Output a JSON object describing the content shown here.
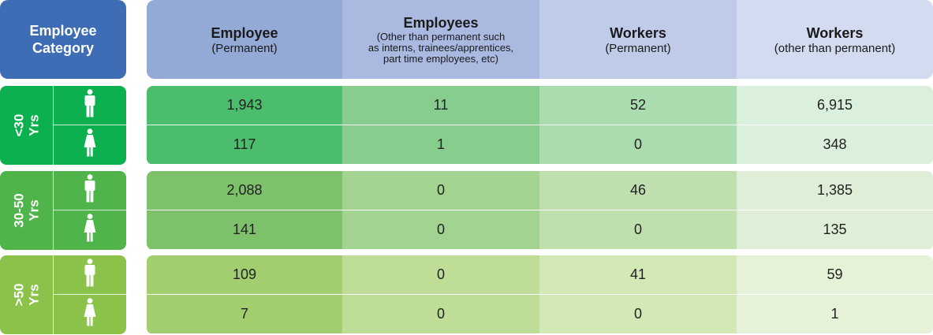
{
  "header": {
    "category": "Employee\nCategory",
    "columns": [
      {
        "title": "Employee",
        "sub": "(Permanent)"
      },
      {
        "title": "Employees",
        "sub": "(Other than permanent such\nas interns, trainees/apprentices,\npart time employees, etc)"
      },
      {
        "title": "Workers",
        "sub": "(Permanent)"
      },
      {
        "title": "Workers",
        "sub": "(other than permanent)"
      }
    ]
  },
  "colors": {
    "category_header": "#3f6db5",
    "header_columns": [
      "#93a9d6",
      "#a9b9df",
      "#bfcbe8",
      "#d3dbf0"
    ]
  },
  "groups": [
    {
      "label": "<30\nYrs",
      "icons": [
        "male-icon",
        "female-icon"
      ],
      "rows": [
        [
          "1,943",
          "11",
          "52",
          "6,915"
        ],
        [
          "117",
          "1",
          "0",
          "348"
        ]
      ],
      "colors": {
        "label": "#0db04f",
        "cells": [
          "#4bbd6c",
          "#86cd8e",
          "#aadcb0",
          "#dbf0dc"
        ]
      }
    },
    {
      "label": "30-50\nYrs",
      "icons": [
        "male-icon",
        "female-icon"
      ],
      "rows": [
        [
          "2,088",
          "0",
          "46",
          "1,385"
        ],
        [
          "141",
          "0",
          "0",
          "135"
        ]
      ],
      "colors": {
        "label": "#4fb449",
        "cells": [
          "#7dc26a",
          "#a3d391",
          "#bfe0ae",
          "#dfeed6"
        ]
      }
    },
    {
      "label": ">50\nYrs",
      "icons": [
        "male-icon",
        "female-icon"
      ],
      "rows": [
        [
          "109",
          "0",
          "41",
          "59"
        ],
        [
          "7",
          "0",
          "0",
          "1"
        ]
      ],
      "colors": {
        "label": "#8bc34a",
        "cells": [
          "#a2ce6f",
          "#bedd97",
          "#d2e8b5",
          "#e6f2d8"
        ]
      }
    }
  ]
}
